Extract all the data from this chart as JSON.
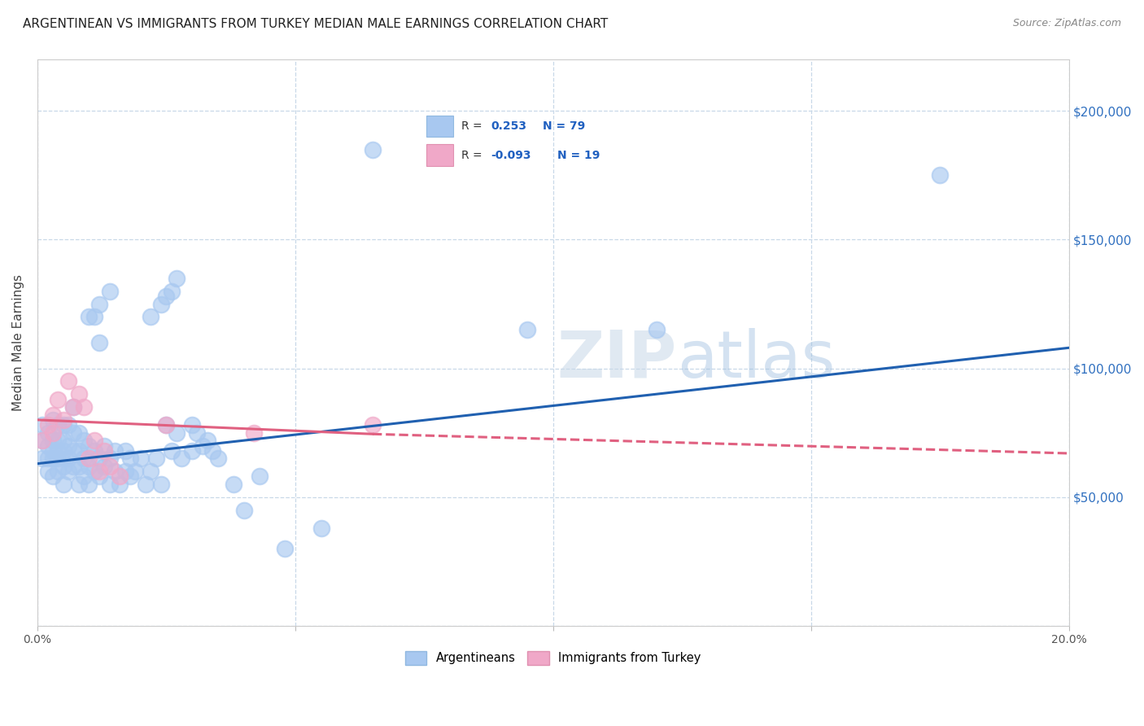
{
  "title": "ARGENTINEAN VS IMMIGRANTS FROM TURKEY MEDIAN MALE EARNINGS CORRELATION CHART",
  "source": "Source: ZipAtlas.com",
  "ylabel": "Median Male Earnings",
  "xlim": [
    0.0,
    0.2
  ],
  "ylim": [
    0,
    220000
  ],
  "yticks": [
    0,
    50000,
    100000,
    150000,
    200000
  ],
  "ytick_labels": [
    "",
    "$50,000",
    "$100,000",
    "$150,000",
    "$200,000"
  ],
  "xticks": [
    0.0,
    0.05,
    0.1,
    0.15,
    0.2
  ],
  "xtick_labels": [
    "0.0%",
    "",
    "",
    "",
    "20.0%"
  ],
  "background_color": "#ffffff",
  "blue_color": "#a8c8f0",
  "pink_color": "#f0a8c8",
  "blue_line_color": "#2060b0",
  "pink_line_color": "#e06080",
  "blue_trend": [
    0.0,
    63000,
    0.2,
    108000
  ],
  "pink_trend_solid": [
    0.0,
    80000,
    0.065,
    74500
  ],
  "pink_trend_dashed": [
    0.065,
    74500,
    0.2,
    67000
  ],
  "argentineans_x": [
    0.001,
    0.001,
    0.001,
    0.002,
    0.002,
    0.002,
    0.002,
    0.003,
    0.003,
    0.003,
    0.003,
    0.003,
    0.004,
    0.004,
    0.004,
    0.004,
    0.004,
    0.005,
    0.005,
    0.005,
    0.005,
    0.005,
    0.006,
    0.006,
    0.006,
    0.006,
    0.007,
    0.007,
    0.007,
    0.007,
    0.008,
    0.008,
    0.008,
    0.008,
    0.009,
    0.009,
    0.009,
    0.01,
    0.01,
    0.01,
    0.011,
    0.011,
    0.012,
    0.012,
    0.013,
    0.013,
    0.014,
    0.014,
    0.015,
    0.015,
    0.016,
    0.017,
    0.017,
    0.018,
    0.018,
    0.019,
    0.02,
    0.021,
    0.022,
    0.023,
    0.024,
    0.025,
    0.026,
    0.027,
    0.028,
    0.03,
    0.03,
    0.031,
    0.032,
    0.033,
    0.034,
    0.035,
    0.038,
    0.04,
    0.043,
    0.048,
    0.055,
    0.095,
    0.175
  ],
  "argentineans_y": [
    65000,
    72000,
    78000,
    60000,
    65000,
    70000,
    75000,
    58000,
    65000,
    68000,
    72000,
    80000,
    60000,
    65000,
    68000,
    72000,
    78000,
    55000,
    62000,
    68000,
    72000,
    78000,
    60000,
    65000,
    70000,
    78000,
    62000,
    68000,
    75000,
    85000,
    55000,
    62000,
    68000,
    75000,
    58000,
    65000,
    72000,
    55000,
    62000,
    70000,
    60000,
    68000,
    58000,
    65000,
    62000,
    70000,
    55000,
    65000,
    60000,
    68000,
    55000,
    60000,
    68000,
    58000,
    65000,
    60000,
    65000,
    55000,
    60000,
    65000,
    55000,
    78000,
    68000,
    75000,
    65000,
    78000,
    68000,
    75000,
    70000,
    72000,
    68000,
    65000,
    55000,
    45000,
    58000,
    30000,
    38000,
    115000,
    175000
  ],
  "argentineans_y_high": [
    120000,
    125000,
    128000,
    130000,
    135000,
    120000,
    110000,
    130000,
    125000,
    120000
  ],
  "argentineans_x_high": [
    0.022,
    0.024,
    0.025,
    0.026,
    0.027,
    0.01,
    0.012,
    0.014,
    0.012,
    0.011
  ],
  "outlier_x": [
    0.065
  ],
  "outlier_y": [
    185000
  ],
  "outlier2_x": [
    0.12
  ],
  "outlier2_y": [
    115000
  ],
  "turkey_x": [
    0.001,
    0.002,
    0.003,
    0.003,
    0.004,
    0.005,
    0.006,
    0.007,
    0.008,
    0.009,
    0.01,
    0.011,
    0.012,
    0.013,
    0.014,
    0.016,
    0.025,
    0.042,
    0.065
  ],
  "turkey_y": [
    72000,
    78000,
    82000,
    75000,
    88000,
    80000,
    95000,
    85000,
    90000,
    85000,
    65000,
    72000,
    60000,
    68000,
    62000,
    58000,
    78000,
    75000,
    78000
  ]
}
